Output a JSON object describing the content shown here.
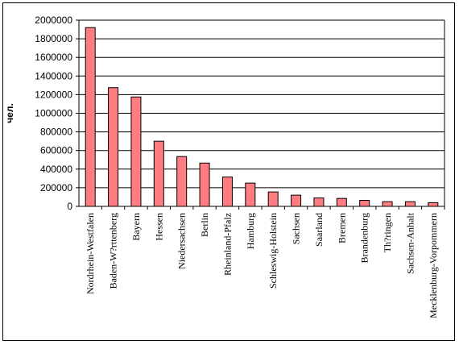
{
  "chart_data": {
    "type": "bar",
    "title": "",
    "xlabel": "",
    "ylabel": "чел.",
    "ylim": [
      0,
      2000000
    ],
    "yticks": [
      0,
      200000,
      400000,
      600000,
      800000,
      1000000,
      1200000,
      1400000,
      1600000,
      1800000,
      2000000
    ],
    "grid": true,
    "bar_color": "#ff7c80",
    "categories": [
      "Nordrhein-Westfalen",
      "Baden-W?rttenberg",
      "Bayern",
      "Hessen",
      "Niedersachsen",
      "Berlin",
      "Rheinland-Pfalz",
      "Hamburg",
      "Schleswig-Holstein",
      "Sachsen",
      "Saarland",
      "Bremen",
      "Brandenburg",
      "Th?ringen",
      "Sachsen-Anhalt",
      "Mecklenburg-Vorpommern"
    ],
    "values": [
      1920000,
      1275000,
      1175000,
      700000,
      535000,
      465000,
      315000,
      250000,
      155000,
      120000,
      90000,
      85000,
      65000,
      50000,
      50000,
      40000
    ]
  }
}
